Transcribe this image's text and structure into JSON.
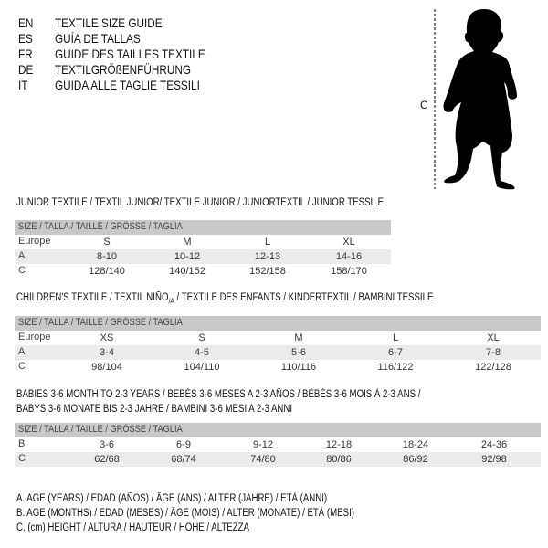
{
  "languages": [
    {
      "code": "EN",
      "text": "TEXTILE SIZE GUIDE"
    },
    {
      "code": "ES",
      "text": "GUÍA DE TALLAS"
    },
    {
      "code": "FR",
      "text": "GUIDE DES TAILLES TEXTILE"
    },
    {
      "code": "DE",
      "text": "TEXTILGRÖßENFÜHRUNG"
    },
    {
      "code": "IT",
      "text": "GUIDA ALLE TAGLIE TESSILI"
    }
  ],
  "figure": {
    "height_label": "C",
    "icon": "baby-silhouette"
  },
  "size_header": "SIZE / TALLA / TAILLE / GRÖSSE / TAGLIA",
  "junior": {
    "title": "JUNIOR TEXTILE / TEXTIL JUNIOR/ TEXTILE JUNIOR / JUNIORTEXTIL / JUNIOR TESSILE",
    "rows": [
      {
        "label": "Europe",
        "values": [
          "S",
          "M",
          "L",
          "XL"
        ]
      },
      {
        "label": "A",
        "values": [
          "8-10",
          "10-12",
          "12-13",
          "14-16"
        ]
      },
      {
        "label": "C",
        "values": [
          "128/140",
          "140/152",
          "152/158",
          "158/170"
        ]
      }
    ]
  },
  "children": {
    "title": "CHILDREN'S TEXTILE / TEXTIL NIÑO/A / TEXTILE DES ENFANTS / KINDERTEXTIL / BAMBINI TESSILE",
    "rows": [
      {
        "label": "Europe",
        "values": [
          "XS",
          "S",
          "M",
          "L",
          "XL"
        ]
      },
      {
        "label": "A",
        "values": [
          "3-4",
          "4-5",
          "5-6",
          "6-7",
          "7-8"
        ]
      },
      {
        "label": "C",
        "values": [
          "98/104",
          "104/110",
          "110/116",
          "116/122",
          "122/128"
        ]
      }
    ]
  },
  "babies": {
    "title_line1": "BABIES 3-6 MONTH TO 2-3 YEARS / BEBÉS 3-6 MESES A 2-3 AÑOS / BÉBÉS 3-6 MOIS À 2-3 ANS /",
    "title_line2": "BABYS 3-6 MONATE BIS 2-3 JAHRE / BAMBINI 3-6 MESI A 2-3 ANNI",
    "rows": [
      {
        "label": "B",
        "values": [
          "3-6",
          "6-9",
          "9-12",
          "12-18",
          "18-24",
          "24-36"
        ]
      },
      {
        "label": "C",
        "values": [
          "62/68",
          "68/74",
          "74/80",
          "80/86",
          "86/92",
          "92/98"
        ]
      }
    ]
  },
  "legend": [
    "A. AGE (YEARS) / EDAD (AÑOS) / ÂGE (ANS) / ALTER (JAHRE) / ETÀ (ANNI)",
    "B. AGE (MONTHS) / EDAD (MESES) / ÂGE (MOIS) / ALTER (MONATE) / ETÀ (MESI)",
    "C. (cm) HEIGHT / ALTURA / HAUTEUR / HÖHE / ALTEZZA"
  ]
}
